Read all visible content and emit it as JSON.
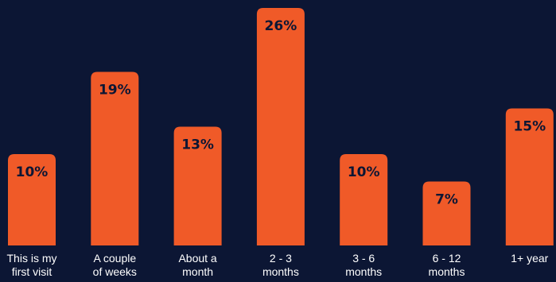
{
  "chart_data": {
    "type": "bar",
    "categories": [
      [
        "This is my",
        "first visit"
      ],
      [
        "A couple",
        "of weeks"
      ],
      [
        "About a",
        "month"
      ],
      [
        "2 - 3",
        "months"
      ],
      [
        "3 - 6",
        "months"
      ],
      [
        "6 - 12",
        "months"
      ],
      [
        "1+ year"
      ]
    ],
    "values": [
      10,
      19,
      13,
      26,
      10,
      7,
      15
    ],
    "value_labels": [
      "10%",
      "19%",
      "13%",
      "26%",
      "10%",
      "7%",
      "15%"
    ],
    "title": "",
    "xlabel": "",
    "ylabel": "",
    "ylim": [
      0,
      26
    ],
    "grid": false,
    "bar_color": "#f05a28",
    "background_color": "#0c1634",
    "value_label_color": "#0c1634",
    "category_label_color": "#ffffff"
  }
}
